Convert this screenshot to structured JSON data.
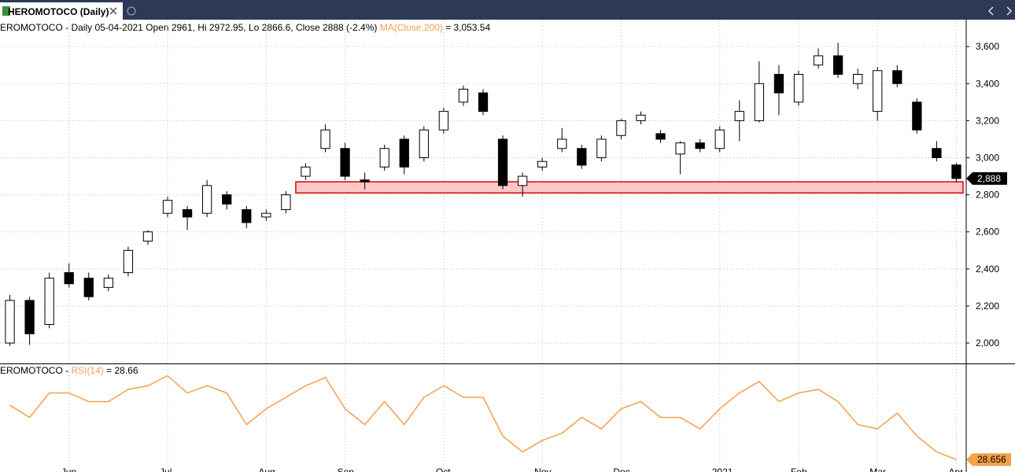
{
  "tab": {
    "title": "HEROMOTOCO (Daily)"
  },
  "chart_data": [
    {
      "type": "candlestick",
      "header": "EROMOTOCO - Daily 05-04-2021 Open 2961, Hi 2972.95, Lo 2866.6, Close 2888 (-2.4%)",
      "indicator": "MA(Close,200)",
      "indicator_color": "#f0a050",
      "indicator_value": "= 3,053.54",
      "categories": [
        null,
        null,
        null,
        "Jun",
        null,
        null,
        null,
        null,
        "Jul",
        null,
        null,
        null,
        null,
        "Aug",
        null,
        null,
        null,
        "Sep",
        null,
        null,
        null,
        null,
        "Oct",
        null,
        null,
        null,
        null,
        "Nov",
        null,
        null,
        null,
        "Dec",
        null,
        null,
        null,
        null,
        "2021",
        null,
        null,
        null,
        "Feb",
        null,
        null,
        null,
        "Mar",
        null,
        null,
        null,
        "Apr"
      ],
      "open": [
        2000,
        2230,
        2100,
        2380,
        2350,
        2300,
        2380,
        2550,
        2700,
        2720,
        2700,
        2800,
        2720,
        2680,
        2720,
        2900,
        3050,
        3050,
        2880,
        2950,
        3100,
        3000,
        3150,
        3300,
        3350,
        3100,
        2850,
        2950,
        3050,
        3050,
        3000,
        3120,
        3200,
        3130,
        3020,
        3080,
        3050,
        3200,
        3200,
        3450,
        3300,
        3500,
        3550,
        3400,
        3250,
        3470,
        3300,
        3050,
        2961
      ],
      "high": [
        2260,
        2250,
        2380,
        2430,
        2380,
        2370,
        2520,
        2610,
        2790,
        2740,
        2880,
        2820,
        2740,
        2720,
        2820,
        2970,
        3180,
        3080,
        2920,
        3070,
        3120,
        3170,
        3270,
        3390,
        3370,
        3120,
        2920,
        3000,
        3160,
        3070,
        3120,
        3210,
        3250,
        3150,
        3090,
        3100,
        3170,
        3310,
        3520,
        3500,
        3470,
        3590,
        3620,
        3480,
        3490,
        3500,
        3320,
        3090,
        2972.95
      ],
      "low": [
        1985,
        1990,
        2080,
        2300,
        2230,
        2280,
        2360,
        2530,
        2680,
        2610,
        2680,
        2720,
        2620,
        2660,
        2700,
        2880,
        3030,
        2880,
        2830,
        2930,
        2910,
        2980,
        3130,
        3280,
        3230,
        2830,
        2790,
        2930,
        3030,
        2940,
        2980,
        3100,
        3180,
        3080,
        2910,
        3030,
        3030,
        3090,
        3190,
        3230,
        3280,
        3480,
        3430,
        3370,
        3200,
        3380,
        3130,
        2980,
        2866.6
      ],
      "close": [
        2230,
        2050,
        2350,
        2320,
        2250,
        2350,
        2500,
        2600,
        2770,
        2680,
        2850,
        2750,
        2650,
        2700,
        2800,
        2950,
        3150,
        2900,
        2870,
        3050,
        2950,
        3150,
        3250,
        3370,
        3250,
        2850,
        2900,
        2980,
        3100,
        2960,
        3100,
        3200,
        3230,
        3100,
        3080,
        3050,
        3150,
        3250,
        3400,
        3350,
        3450,
        3550,
        3450,
        3450,
        3470,
        3400,
        3150,
        3000,
        2888
      ],
      "last_value_label": "2,888",
      "ylim": [
        1890,
        3745
      ],
      "yticks": [
        {
          "value": 2000,
          "label": "2,000"
        },
        {
          "value": 2200,
          "label": "2,200"
        },
        {
          "value": 2400,
          "label": "2,400"
        },
        {
          "value": 2600,
          "label": "2,600"
        },
        {
          "value": 2800,
          "label": "2,800"
        },
        {
          "value": 3000,
          "label": "3,000"
        },
        {
          "value": 3200,
          "label": "3,200"
        },
        {
          "value": 3400,
          "label": "3,400"
        },
        {
          "value": 3600,
          "label": "3,600"
        }
      ],
      "grid": true,
      "zone": {
        "low": 2810,
        "high": 2870,
        "start": 15,
        "color": "#e00000",
        "fill": "#ffc8c8"
      }
    },
    {
      "type": "line",
      "header": "EROMOTOCO - ",
      "indicator": "RSI(14)",
      "indicator_color": "#f0a050",
      "indicator_value": "= 28.66",
      "color": "#f5a04a",
      "values": [
        66.5,
        58,
        75,
        75,
        69,
        69,
        77.5,
        80,
        87,
        75,
        80,
        75,
        53,
        64,
        72,
        80,
        85.7,
        64,
        53,
        69,
        53,
        72,
        80,
        72,
        72,
        45,
        34,
        42,
        47,
        58,
        50,
        64,
        69,
        58,
        58,
        50,
        64,
        75,
        83,
        69,
        75,
        77.5,
        69,
        53,
        50,
        61,
        45,
        34,
        28.656
      ],
      "ylim": [
        20,
        95
      ]
    }
  ]
}
